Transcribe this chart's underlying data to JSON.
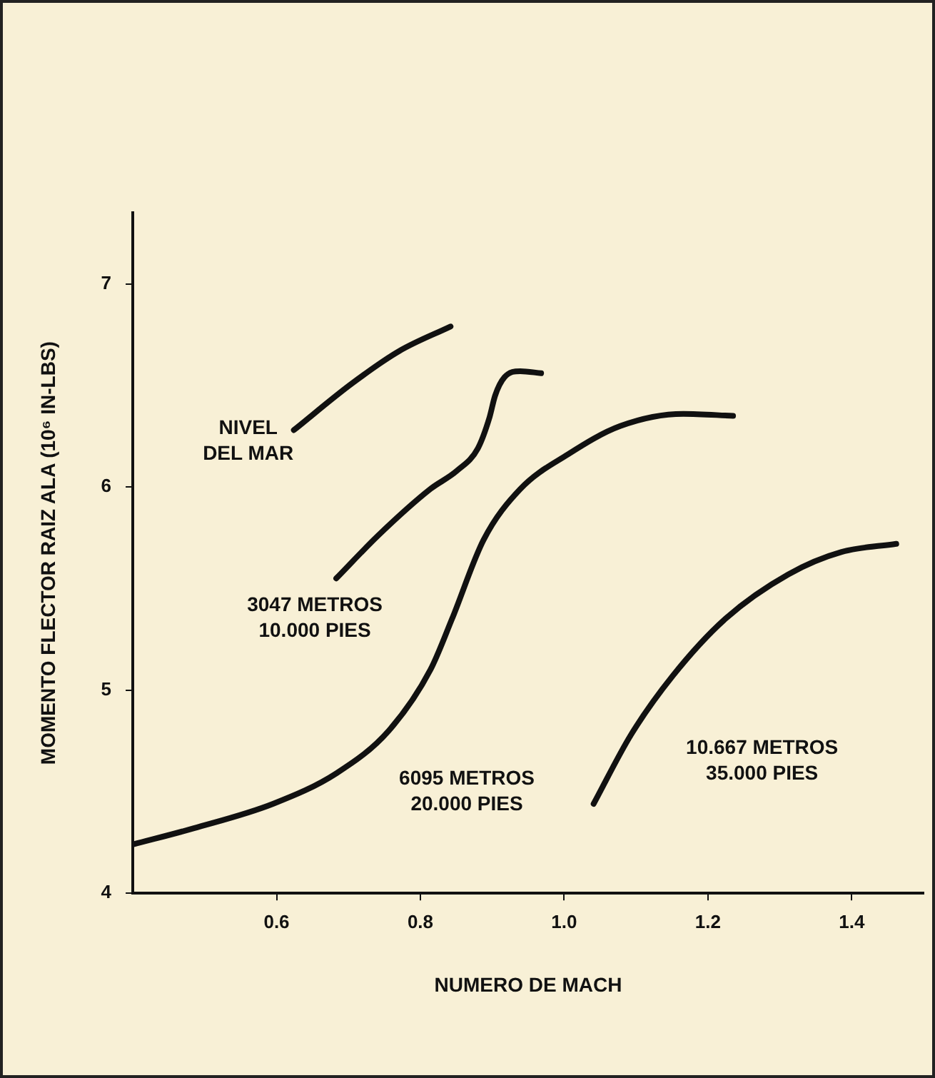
{
  "chart_data": {
    "type": "line",
    "xlabel": "NUMERO DE MACH",
    "ylabel": "MOMENTO FLECTOR RAIZ ALA (10⁶ IN-LBS)",
    "xlim": [
      0.4,
      1.5
    ],
    "xticks": [
      0.6,
      0.8,
      {
        "value": 1.0,
        "label": "1.0"
      },
      1.2,
      1.4
    ],
    "ylim": [
      4,
      7.35
    ],
    "yticks": [
      4,
      5,
      6,
      7
    ],
    "grid": false,
    "legend": false,
    "marker": "none",
    "line_style": "solid",
    "series": [
      {
        "name": "NIVEL\nDEL MAR",
        "color": "#111111",
        "x": [
          0.624,
          0.705,
          0.771,
          0.842
        ],
        "values": [
          6.28,
          6.51,
          6.67,
          6.79
        ]
      },
      {
        "name": "3047 METROS\n10.000 PIES",
        "color": "#111111",
        "x": [
          0.683,
          0.741,
          0.814,
          0.851,
          0.88,
          0.896,
          0.904,
          0.917,
          0.939,
          0.968
        ],
        "values": [
          5.55,
          5.76,
          5.99,
          6.08,
          6.19,
          6.34,
          6.45,
          6.54,
          6.57,
          6.56
        ]
      },
      {
        "name": "6095 METROS\n20.000 PIES",
        "color": "#111111",
        "x": [
          0.4,
          0.485,
          0.595,
          0.683,
          0.756,
          0.814,
          0.844,
          0.888,
          0.939,
          1.005,
          1.078,
          1.166,
          1.235
        ],
        "values": [
          4.24,
          4.32,
          4.44,
          4.59,
          4.8,
          5.1,
          5.35,
          5.74,
          5.99,
          6.16,
          6.3,
          6.36,
          6.35
        ]
      },
      {
        "name": "10.667 METROS\n35.000 PIES",
        "color": "#111111",
        "x": [
          1.041,
          1.093,
          1.151,
          1.224,
          1.312,
          1.386,
          1.462
        ],
        "values": [
          4.44,
          4.78,
          5.07,
          5.35,
          5.57,
          5.68,
          5.72
        ]
      }
    ]
  }
}
